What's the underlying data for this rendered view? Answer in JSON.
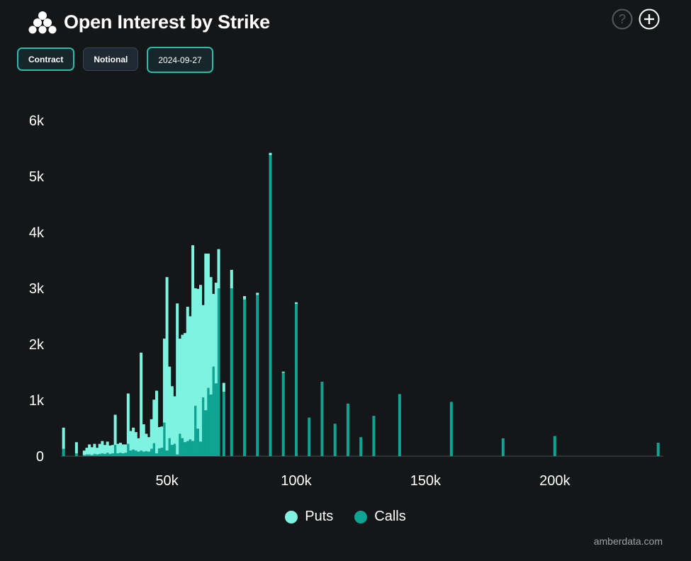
{
  "header": {
    "title": "Open Interest by Strike",
    "logo_icon": "amberdata-logo-icon"
  },
  "top_icons": [
    "help-icon",
    "add-icon"
  ],
  "buttons": {
    "contract": "Contract",
    "notional": "Notional",
    "date": "2024-09-27"
  },
  "colors": {
    "puts": "#7ff3e1",
    "calls": "#0fa393",
    "background": "#141617",
    "axis_text": "#ffffff",
    "baseline": "#3a3d40"
  },
  "legend": {
    "puts": "Puts",
    "calls": "Calls"
  },
  "credit": "amberdata.com",
  "chart_data": {
    "type": "bar",
    "stacked": true,
    "xlim": [
      9000,
      242000
    ],
    "ylim": [
      0,
      6000
    ],
    "x_ticks": [
      50000,
      100000,
      150000,
      200000
    ],
    "x_tick_labels": [
      "50k",
      "100k",
      "150k",
      "200k"
    ],
    "y_ticks": [
      0,
      1000,
      2000,
      3000,
      4000,
      5000,
      6000
    ],
    "y_tick_labels": [
      "0",
      "1k",
      "2k",
      "3k",
      "4k",
      "5k",
      "6k"
    ],
    "grid": false,
    "legend_position": "bottom-center",
    "series": [
      {
        "name": "Puts",
        "strikes": [
          10000,
          15000,
          18000,
          19000,
          20000,
          21000,
          22000,
          23000,
          24000,
          25000,
          26000,
          27000,
          28000,
          29000,
          30000,
          31000,
          32000,
          33000,
          34000,
          35000,
          36000,
          37000,
          38000,
          39000,
          40000,
          41000,
          42000,
          43000,
          44000,
          45000,
          46000,
          47000,
          48000,
          49000,
          50000,
          51000,
          52000,
          53000,
          54000,
          55000,
          56000,
          57000,
          58000,
          59000,
          60000,
          61000,
          62000,
          63000,
          64000,
          65000,
          66000,
          67000,
          68000,
          69000,
          70000,
          72000,
          75000,
          80000,
          85000,
          90000,
          95000,
          100000
        ],
        "values": [
          380,
          200,
          80,
          120,
          180,
          140,
          180,
          120,
          180,
          220,
          160,
          200,
          150,
          150,
          540,
          170,
          180,
          160,
          150,
          900,
          350,
          390,
          330,
          240,
          1750,
          490,
          310,
          260,
          530,
          780,
          1120,
          380,
          380,
          1500,
          3100,
          1280,
          1050,
          850,
          2700,
          1700,
          1850,
          1950,
          2400,
          2200,
          3500,
          2100,
          2500,
          2800,
          1650,
          2800,
          2400,
          2100,
          1300,
          1800,
          700,
          160,
          330,
          60,
          40,
          40,
          20,
          30
        ]
      },
      {
        "name": "Calls",
        "strikes": [
          10000,
          15000,
          18000,
          19000,
          20000,
          21000,
          22000,
          23000,
          24000,
          25000,
          26000,
          27000,
          28000,
          29000,
          30000,
          31000,
          32000,
          33000,
          34000,
          35000,
          36000,
          37000,
          38000,
          39000,
          40000,
          41000,
          42000,
          43000,
          44000,
          45000,
          46000,
          47000,
          48000,
          49000,
          50000,
          51000,
          52000,
          53000,
          54000,
          55000,
          56000,
          57000,
          58000,
          59000,
          60000,
          61000,
          62000,
          63000,
          64000,
          65000,
          66000,
          67000,
          68000,
          69000,
          70000,
          72000,
          75000,
          80000,
          85000,
          90000,
          95000,
          100000,
          105000,
          110000,
          115000,
          120000,
          125000,
          130000,
          140000,
          160000,
          180000,
          200000,
          240000
        ],
        "values": [
          130,
          50,
          20,
          30,
          30,
          20,
          40,
          30,
          40,
          50,
          40,
          60,
          40,
          50,
          200,
          50,
          60,
          50,
          60,
          220,
          100,
          120,
          100,
          80,
          100,
          80,
          90,
          80,
          130,
          230,
          50,
          140,
          150,
          600,
          100,
          320,
          200,
          220,
          30,
          400,
          320,
          250,
          270,
          300,
          270,
          900,
          490,
          260,
          1050,
          820,
          1220,
          1100,
          1600,
          1300,
          3000,
          1150,
          3000,
          2800,
          2880,
          5380,
          1490,
          2720,
          690,
          1330,
          580,
          940,
          340,
          720,
          1110,
          970,
          320,
          360,
          240
        ]
      }
    ]
  }
}
